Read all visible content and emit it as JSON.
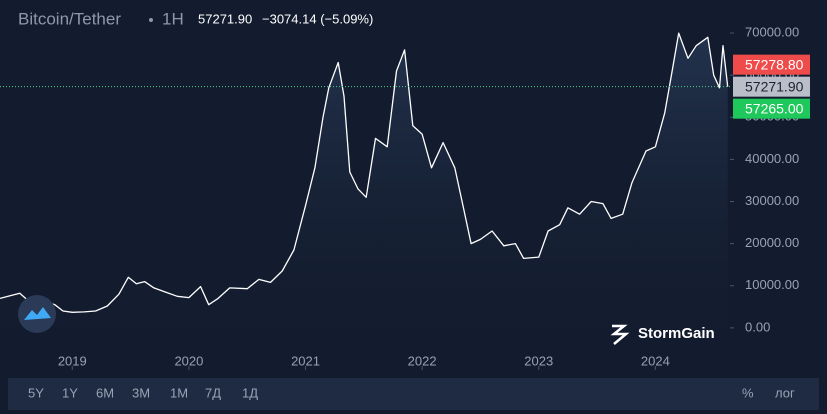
{
  "chart_data": {
    "type": "line",
    "title": "Bitcoin/Tether",
    "interval": "1H",
    "last_price": "57271.90",
    "change": "−3074.14 (−5.09%)",
    "color": "#ffffff",
    "x": [
      2018.38,
      2018.45,
      2018.55,
      2018.62,
      2018.75,
      2018.85,
      2018.92,
      2019.0,
      2019.1,
      2019.2,
      2019.3,
      2019.4,
      2019.48,
      2019.55,
      2019.62,
      2019.7,
      2019.8,
      2019.9,
      2020.0,
      2020.1,
      2020.17,
      2020.25,
      2020.35,
      2020.5,
      2020.6,
      2020.7,
      2020.8,
      2020.9,
      2021.0,
      2021.08,
      2021.15,
      2021.2,
      2021.28,
      2021.33,
      2021.38,
      2021.45,
      2021.52,
      2021.6,
      2021.7,
      2021.78,
      2021.85,
      2021.92,
      2022.0,
      2022.08,
      2022.18,
      2022.28,
      2022.35,
      2022.42,
      2022.5,
      2022.6,
      2022.7,
      2022.8,
      2022.87,
      2023.0,
      2023.08,
      2023.18,
      2023.25,
      2023.35,
      2023.45,
      2023.55,
      2023.62,
      2023.72,
      2023.8,
      2023.92,
      2024.0,
      2024.08,
      2024.15,
      2024.2,
      2024.28,
      2024.35,
      2024.45,
      2024.5,
      2024.55,
      2024.58,
      2024.62
    ],
    "values": [
      7000,
      7500,
      8200,
      6500,
      6500,
      5500,
      4000,
      3700,
      3800,
      4000,
      5200,
      8000,
      12000,
      10500,
      11000,
      9500,
      8500,
      7500,
      7200,
      9800,
      5500,
      7000,
      9500,
      9300,
      11500,
      10800,
      13500,
      18500,
      29000,
      38000,
      50000,
      57000,
      63000,
      55000,
      37000,
      33000,
      31000,
      45000,
      43000,
      61000,
      66000,
      48000,
      46000,
      38000,
      44000,
      38000,
      29000,
      20000,
      21000,
      23000,
      19500,
      20000,
      16500,
      16800,
      23000,
      24500,
      28500,
      27000,
      30000,
      29500,
      26000,
      27000,
      34500,
      42000,
      43000,
      51000,
      62000,
      70000,
      64000,
      67000,
      69000,
      60000,
      57000,
      67000,
      57271.9
    ],
    "xlim": [
      2018.38,
      2024.64
    ],
    "xticks": [
      2019,
      2020,
      2021,
      2022,
      2023,
      2024
    ],
    "ylim": [
      -10000,
      75000
    ],
    "yticks": [
      {
        "value": 0,
        "label": "0.00"
      },
      {
        "value": 10000,
        "label": "10000.00"
      },
      {
        "value": 20000,
        "label": "20000.00"
      },
      {
        "value": 30000,
        "label": "30000.00"
      },
      {
        "value": 40000,
        "label": "40000.00"
      },
      {
        "value": 50000,
        "label": "50000.00"
      },
      {
        "value": 60000,
        "label": "60000.00"
      },
      {
        "value": 70000,
        "label": "70000.00"
      }
    ],
    "price_tags": [
      {
        "value": 57278.8,
        "label": "57278.80",
        "color": "#ef4b4b"
      },
      {
        "value": 57271.9,
        "label": "57271.90",
        "color": "#b9bec8"
      },
      {
        "value": 57265.0,
        "label": "57265.00",
        "color": "#1ec85a"
      }
    ],
    "brand": "StormGain",
    "ranges": [
      "5Y",
      "1Y",
      "6M",
      "3M",
      "1M",
      "7Д",
      "1Д"
    ],
    "percent": "%",
    "log": "лог"
  }
}
